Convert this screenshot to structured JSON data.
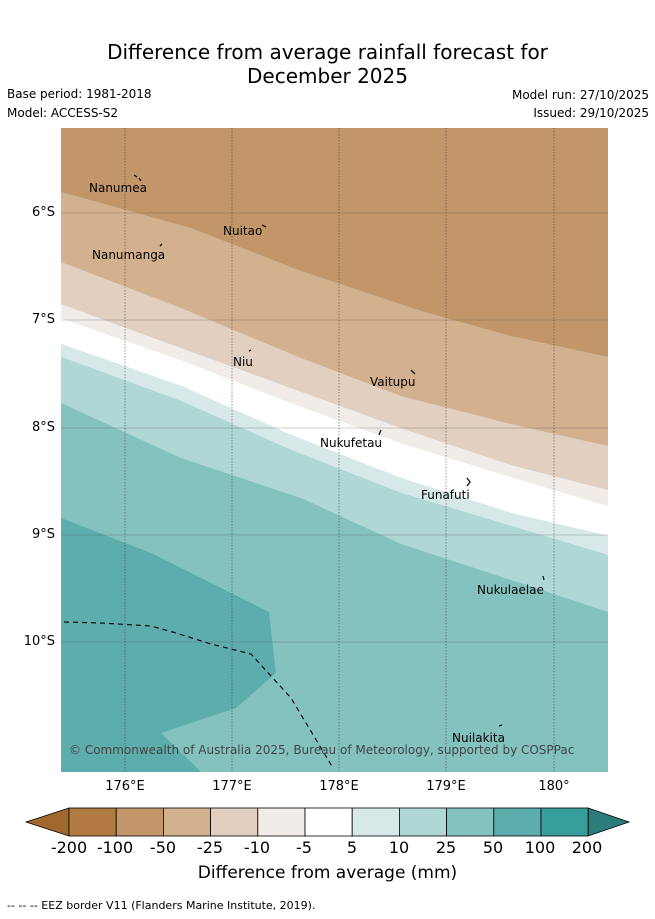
{
  "header": {
    "title_line1": "Difference from average rainfall forecast for",
    "title_line2": "December 2025",
    "base_period": "Base period: 1981-2018",
    "model": "Model: ACCESS-S2",
    "model_run": "Model run: 27/10/2025",
    "issued": "Issued: 29/10/2025"
  },
  "map": {
    "lat_labels": [
      "6°S",
      "7°S",
      "8°S",
      "9°S",
      "10°S"
    ],
    "lon_labels": [
      "176°E",
      "177°E",
      "178°E",
      "179°E",
      "180°"
    ],
    "places": [
      "Nanumea",
      "Nuitao",
      "Nanumanga",
      "Niu",
      "Vaitupu",
      "Nukufetau",
      "Funafuti",
      "Nukulaelae",
      "Nuilakita"
    ],
    "copyright": "© Commonwealth of Australia 2025, Bureau of Meteorology, supported by COSPPac"
  },
  "colorbar": {
    "ticks": [
      "-200",
      "-100",
      "-50",
      "-25",
      "-10",
      "-5",
      "5",
      "10",
      "25",
      "50",
      "100",
      "200"
    ],
    "colors": [
      "#a0682d",
      "#b07a40",
      "#c29668",
      "#d3b08e",
      "#e2cfbf",
      "#f1ece7",
      "#ffffff",
      "#d6e9e8",
      "#aed7d6",
      "#84c2c0",
      "#5dadac",
      "#379e9c",
      "#2a7d7b"
    ],
    "title": "Difference from average (mm)"
  },
  "footer": {
    "eez_note": "--  --  -- EEZ border V11 (Flanders Marine Institute, 2019)."
  }
}
